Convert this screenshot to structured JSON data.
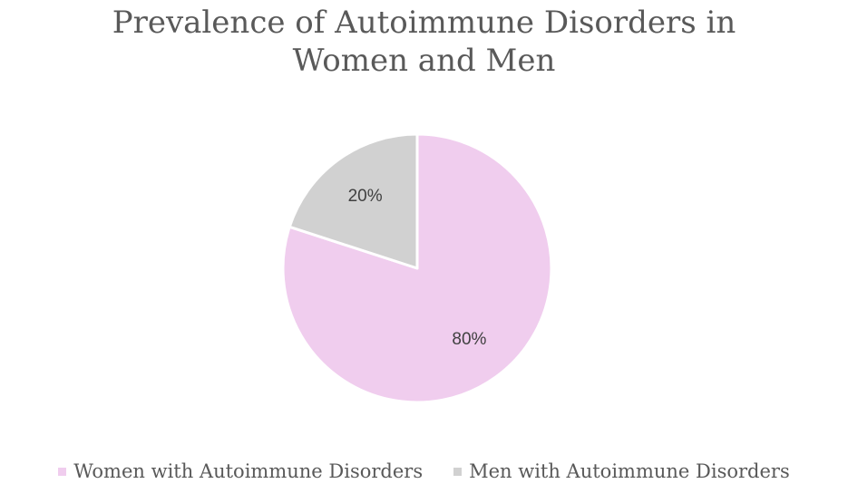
{
  "chart_data": {
    "type": "pie",
    "title_lines": [
      "Prevalence of Autoimmune Disorders in",
      "Women and Men"
    ],
    "slices": [
      {
        "label": "Women with Autoimmune Disorders",
        "value": 80,
        "display": "80%",
        "color": "#f0cdee"
      },
      {
        "label": "Men with Autoimmune Disorders",
        "value": 20,
        "display": "20%",
        "color": "#d1d1d1"
      }
    ],
    "legend_position": "bottom",
    "start_angle_deg": 0,
    "direction": "clockwise"
  }
}
